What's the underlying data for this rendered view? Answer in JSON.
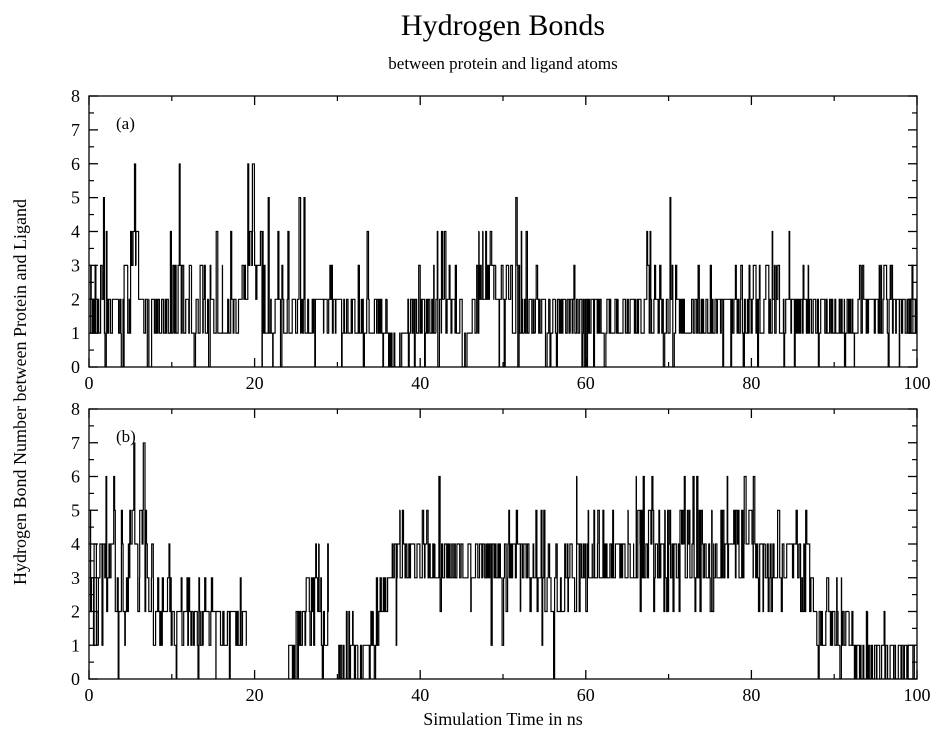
{
  "figure": {
    "title": "Hydrogen Bonds",
    "subtitle": "between protein and ligand atoms",
    "xlabel": "Simulation Time in ns",
    "ylabel": "Hydrogen Bond Number between Protein and Ligand"
  },
  "chart_data": [
    {
      "type": "line",
      "panel_label": "(a)",
      "xlim": [
        0,
        100
      ],
      "ylim": [
        0,
        8
      ],
      "x_ticks": [
        0,
        20,
        40,
        60,
        80,
        100
      ],
      "y_ticks": [
        0,
        1,
        2,
        3,
        4,
        5,
        6,
        7,
        8
      ],
      "line_color": "#000000",
      "series": [
        {
          "x": [
            0,
            1,
            2,
            3,
            4,
            5,
            6,
            7,
            8,
            9,
            10,
            11,
            12,
            13,
            14,
            15,
            16,
            17,
            18,
            19,
            20,
            21,
            22,
            23,
            24,
            25,
            26,
            27,
            28,
            29,
            30,
            31,
            32,
            33,
            34,
            35,
            36,
            37,
            38,
            39,
            40,
            41,
            42,
            43,
            44,
            45,
            46,
            47,
            48,
            49,
            50,
            51,
            52,
            53,
            54,
            55,
            56,
            57,
            58,
            59,
            60,
            61,
            62,
            63,
            64,
            65,
            66,
            67,
            68,
            69,
            70,
            71,
            72,
            73,
            74,
            75,
            76,
            77,
            78,
            79,
            80,
            81,
            82,
            83,
            84,
            85,
            86,
            87,
            88,
            89,
            90,
            91,
            92,
            93,
            94,
            95,
            96,
            97,
            98,
            99,
            100
          ],
          "min": [
            0,
            0,
            1,
            0,
            0,
            1,
            0,
            0,
            0,
            1,
            0,
            0,
            0,
            1,
            0,
            0,
            0,
            0,
            1,
            0,
            0,
            1,
            0,
            0,
            1,
            0,
            0,
            0,
            1,
            0,
            0,
            1,
            0,
            0,
            1,
            0,
            0,
            0,
            0,
            0,
            0,
            0,
            0,
            0,
            0,
            0,
            0,
            1,
            1,
            0,
            0,
            0,
            0,
            1,
            0,
            0,
            0,
            0,
            1,
            0,
            0,
            0,
            0,
            1,
            0,
            0,
            0,
            0,
            1,
            0,
            0,
            0,
            0,
            0,
            0,
            0,
            0,
            0,
            1,
            0,
            0,
            1,
            0,
            0,
            1,
            0,
            0,
            0,
            0,
            0,
            1,
            0,
            0,
            0,
            0,
            1,
            0,
            0,
            1,
            0,
            1
          ],
          "max": [
            4,
            5,
            4,
            3,
            5,
            6,
            4,
            3,
            3,
            4,
            6,
            4,
            5,
            4,
            3,
            4,
            3,
            4,
            5,
            6,
            6,
            5,
            4,
            3,
            4,
            5,
            3,
            2,
            2,
            3,
            2,
            3,
            3,
            4,
            3,
            3,
            2,
            3,
            4,
            3,
            3,
            3,
            4,
            3,
            3,
            2,
            3,
            5,
            4,
            4,
            3,
            5,
            4,
            4,
            3,
            3,
            3,
            2,
            3,
            2,
            3,
            2,
            3,
            2,
            3,
            4,
            3,
            4,
            3,
            4,
            5,
            4,
            3,
            3,
            2,
            3,
            2,
            2,
            3,
            3,
            4,
            4,
            4,
            3,
            4,
            3,
            3,
            2,
            3,
            2,
            3,
            3,
            4,
            3,
            2,
            3,
            3,
            2,
            3,
            3,
            3
          ],
          "lo": [
            1,
            1,
            1,
            1,
            1,
            2,
            1,
            1,
            1,
            1,
            1,
            1,
            1,
            1,
            1,
            1,
            1,
            1,
            2,
            2,
            2,
            1,
            1,
            1,
            1,
            1,
            1,
            1,
            1,
            1,
            1,
            1,
            1,
            1,
            1,
            1,
            0,
            0,
            1,
            1,
            1,
            1,
            1,
            1,
            1,
            0,
            1,
            2,
            2,
            2,
            2,
            1,
            1,
            1,
            1,
            1,
            1,
            1,
            1,
            1,
            1,
            1,
            1,
            1,
            1,
            1,
            1,
            1,
            1,
            1,
            1,
            1,
            1,
            1,
            1,
            1,
            1,
            1,
            1,
            1,
            1,
            1,
            1,
            1,
            1,
            1,
            1,
            1,
            1,
            1,
            1,
            1,
            1,
            1,
            1,
            1,
            1,
            1,
            1,
            1,
            1
          ],
          "hi": [
            3,
            3,
            2,
            2,
            3,
            4,
            2,
            2,
            2,
            2,
            3,
            3,
            3,
            3,
            2,
            2,
            2,
            2,
            3,
            4,
            4,
            3,
            2,
            2,
            2,
            2,
            2,
            2,
            2,
            2,
            2,
            2,
            2,
            2,
            2,
            2,
            1,
            1,
            2,
            2,
            2,
            2,
            2,
            2,
            2,
            1,
            2,
            4,
            3,
            3,
            3,
            3,
            2,
            2,
            2,
            2,
            2,
            2,
            2,
            2,
            2,
            2,
            2,
            2,
            2,
            2,
            2,
            3,
            2,
            2,
            3,
            2,
            2,
            2,
            2,
            2,
            2,
            2,
            2,
            2,
            3,
            3,
            3,
            2,
            2,
            2,
            2,
            2,
            2,
            2,
            2,
            2,
            2,
            2,
            2,
            2,
            2,
            2,
            2,
            2,
            2
          ]
        }
      ]
    },
    {
      "type": "line",
      "panel_label": "(b)",
      "xlim": [
        0,
        100
      ],
      "ylim": [
        0,
        8
      ],
      "x_ticks": [
        0,
        20,
        40,
        60,
        80,
        100
      ],
      "y_ticks": [
        0,
        1,
        2,
        3,
        4,
        5,
        6,
        7,
        8
      ],
      "line_color": "#000000",
      "series": [
        {
          "x": [
            0,
            1,
            2,
            3,
            4,
            5,
            6,
            7,
            8,
            9,
            10,
            11,
            12,
            13,
            14,
            15,
            16,
            17,
            18,
            19,
            20,
            21,
            22,
            23,
            24,
            25,
            26,
            27,
            28,
            29,
            30,
            31,
            32,
            33,
            34,
            35,
            36,
            37,
            38,
            39,
            40,
            41,
            42,
            43,
            44,
            45,
            46,
            47,
            48,
            49,
            50,
            51,
            52,
            53,
            54,
            55,
            56,
            57,
            58,
            59,
            60,
            61,
            62,
            63,
            64,
            65,
            66,
            67,
            68,
            69,
            70,
            71,
            72,
            73,
            74,
            75,
            76,
            77,
            78,
            79,
            80,
            81,
            82,
            83,
            84,
            85,
            86,
            87,
            88,
            89,
            90,
            91,
            92,
            93,
            94,
            95,
            96,
            97,
            98,
            99,
            100
          ],
          "min": [
            1,
            1,
            1,
            0,
            1,
            2,
            2,
            1,
            1,
            1,
            0,
            1,
            0,
            0,
            0,
            0,
            0,
            0,
            0,
            null,
            null,
            null,
            null,
            null,
            0,
            0,
            1,
            1,
            0,
            null,
            0,
            0,
            0,
            0,
            0,
            1,
            1,
            1,
            2,
            2,
            2,
            2,
            2,
            2,
            2,
            2,
            2,
            2,
            1,
            1,
            2,
            2,
            2,
            2,
            1,
            0,
            0,
            1,
            2,
            2,
            2,
            2,
            2,
            1,
            1,
            1,
            2,
            2,
            2,
            2,
            2,
            2,
            2,
            2,
            2,
            2,
            2,
            2,
            2,
            2,
            2,
            2,
            2,
            2,
            2,
            2,
            2,
            1,
            0,
            0,
            0,
            0,
            0,
            0,
            0,
            0,
            0,
            0,
            0,
            0,
            1
          ],
          "max": [
            5,
            5,
            6,
            5,
            5,
            7,
            7,
            6,
            5,
            4,
            4,
            3,
            3,
            3,
            3,
            3,
            2,
            2,
            3,
            null,
            null,
            null,
            null,
            null,
            2,
            3,
            4,
            4,
            4,
            null,
            1,
            2,
            1,
            2,
            3,
            4,
            4,
            5,
            5,
            5,
            6,
            5,
            6,
            6,
            5,
            5,
            5,
            5,
            5,
            5,
            5,
            5,
            5,
            5,
            5,
            4,
            4,
            4,
            6,
            5,
            5,
            5,
            5,
            5,
            5,
            5,
            6,
            6,
            6,
            6,
            6,
            6,
            6,
            6,
            6,
            6,
            6,
            6,
            6,
            6,
            6,
            6,
            5,
            5,
            5,
            5,
            5,
            4,
            3,
            3,
            3,
            4,
            2,
            2,
            2,
            2,
            2,
            1,
            1,
            1,
            3
          ],
          "lo": [
            2,
            2,
            2,
            2,
            2,
            3,
            3,
            2,
            2,
            2,
            1,
            1,
            1,
            1,
            1,
            1,
            1,
            1,
            1,
            null,
            null,
            null,
            null,
            null,
            0,
            1,
            2,
            2,
            1,
            null,
            0,
            0,
            0,
            0,
            1,
            2,
            2,
            3,
            3,
            3,
            3,
            3,
            3,
            3,
            3,
            3,
            3,
            3,
            3,
            3,
            3,
            3,
            3,
            3,
            2,
            2,
            2,
            2,
            3,
            3,
            3,
            3,
            3,
            3,
            3,
            3,
            3,
            3,
            3,
            3,
            3,
            3,
            3,
            3,
            3,
            3,
            3,
            3,
            3,
            3,
            3,
            3,
            3,
            3,
            3,
            3,
            3,
            2,
            1,
            1,
            1,
            1,
            0,
            0,
            0,
            0,
            0,
            0,
            0,
            0,
            1
          ],
          "hi": [
            4,
            4,
            4,
            3,
            4,
            5,
            5,
            4,
            3,
            3,
            2,
            2,
            2,
            2,
            2,
            2,
            2,
            2,
            2,
            null,
            null,
            null,
            null,
            null,
            1,
            2,
            3,
            3,
            2,
            null,
            1,
            1,
            1,
            1,
            2,
            3,
            3,
            4,
            4,
            4,
            5,
            4,
            4,
            4,
            4,
            4,
            4,
            4,
            4,
            4,
            4,
            4,
            4,
            4,
            3,
            3,
            3,
            3,
            4,
            4,
            4,
            4,
            4,
            4,
            4,
            4,
            5,
            5,
            5,
            5,
            5,
            5,
            5,
            5,
            5,
            5,
            5,
            5,
            5,
            5,
            4,
            4,
            4,
            4,
            4,
            4,
            4,
            3,
            2,
            2,
            2,
            2,
            1,
            1,
            1,
            1,
            1,
            1,
            1,
            1,
            2
          ]
        }
      ]
    }
  ]
}
